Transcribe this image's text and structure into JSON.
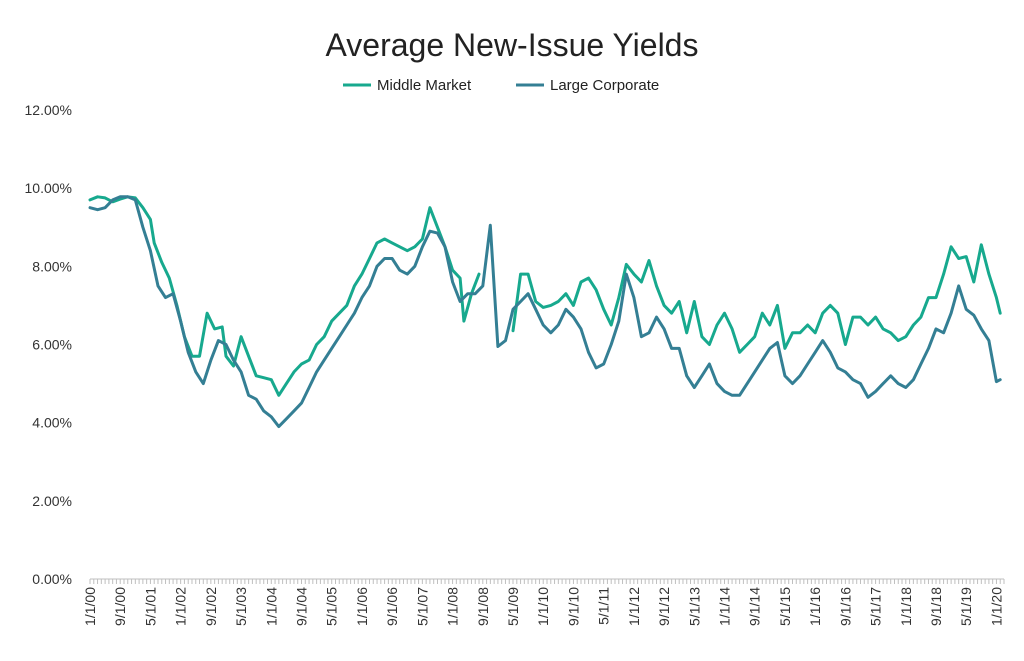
{
  "chart_data": {
    "type": "line",
    "title": "Average New-Issue Yields",
    "xlabel": "",
    "ylabel": "",
    "ylim": [
      0,
      12
    ],
    "yticks": [
      "0.00%",
      "2.00%",
      "4.00%",
      "6.00%",
      "8.00%",
      "10.00%",
      "12.00%"
    ],
    "ytick_values": [
      0,
      2,
      4,
      6,
      8,
      10,
      12
    ],
    "xlim": [
      "2000-01",
      "2020-03"
    ],
    "xticks": [
      "1/1/00",
      "9/1/00",
      "5/1/01",
      "1/1/02",
      "9/1/02",
      "5/1/03",
      "1/1/04",
      "9/1/04",
      "5/1/05",
      "1/1/06",
      "9/1/06",
      "5/1/07",
      "1/1/08",
      "9/1/08",
      "5/1/09",
      "1/1/10",
      "9/1/10",
      "5/1/11",
      "1/1/12",
      "9/1/12",
      "5/1/13",
      "1/1/14",
      "9/1/14",
      "5/1/15",
      "1/1/16",
      "9/1/16",
      "5/1/17",
      "1/1/18",
      "9/1/18",
      "5/1/19",
      "1/1/20"
    ],
    "legend_position": "top",
    "grid": false,
    "series": [
      {
        "name": "Middle Market",
        "color": "#17a98e",
        "points": [
          [
            "2000-01",
            9.7
          ],
          [
            "2000-03",
            9.78
          ],
          [
            "2000-05",
            9.75
          ],
          [
            "2000-07",
            9.65
          ],
          [
            "2000-09",
            9.72
          ],
          [
            "2000-11",
            9.78
          ],
          [
            "2001-01",
            9.75
          ],
          [
            "2001-03",
            9.5
          ],
          [
            "2001-05",
            9.2
          ],
          [
            "2001-06",
            8.6
          ],
          [
            "2001-08",
            8.1
          ],
          [
            "2001-10",
            7.7
          ],
          [
            "2001-12",
            7.0
          ],
          [
            "2002-02",
            6.2
          ],
          [
            "2002-04",
            5.7
          ],
          [
            "2002-06",
            5.7
          ],
          [
            "2002-08",
            6.8
          ],
          [
            "2002-10",
            6.4
          ],
          [
            "2002-12",
            6.45
          ],
          [
            "2003-01",
            5.7
          ],
          [
            "2003-03",
            5.45
          ],
          [
            "2003-05",
            6.2
          ],
          [
            "2003-07",
            5.7
          ],
          [
            "2003-09",
            5.2
          ],
          [
            "2003-11",
            5.15
          ],
          [
            "2004-01",
            5.1
          ],
          [
            "2004-03",
            4.7
          ],
          [
            "2004-05",
            5.0
          ],
          [
            "2004-07",
            5.3
          ],
          [
            "2004-09",
            5.5
          ],
          [
            "2004-11",
            5.6
          ],
          [
            "2005-01",
            6.0
          ],
          [
            "2005-03",
            6.2
          ],
          [
            "2005-05",
            6.6
          ],
          [
            "2005-07",
            6.8
          ],
          [
            "2005-09",
            7.0
          ],
          [
            "2005-11",
            7.5
          ],
          [
            "2006-01",
            7.8
          ],
          [
            "2006-03",
            8.2
          ],
          [
            "2006-05",
            8.6
          ],
          [
            "2006-07",
            8.7
          ],
          [
            "2006-09",
            8.6
          ],
          [
            "2006-11",
            8.5
          ],
          [
            "2007-01",
            8.4
          ],
          [
            "2007-03",
            8.5
          ],
          [
            "2007-05",
            8.7
          ],
          [
            "2007-07",
            9.5
          ],
          [
            "2007-09",
            9.0
          ],
          [
            "2007-11",
            8.5
          ],
          [
            "2008-01",
            7.9
          ],
          [
            "2008-03",
            7.7
          ],
          [
            "2008-04",
            6.6
          ],
          [
            "2008-06",
            7.3
          ],
          [
            "2008-08",
            7.8
          ]
        ]
      },
      {
        "name": "Middle Market",
        "color": "#17a98e",
        "points": [
          [
            "2009-05",
            6.35
          ],
          [
            "2009-07",
            7.8
          ],
          [
            "2009-09",
            7.8
          ],
          [
            "2009-11",
            7.1
          ],
          [
            "2010-01",
            6.95
          ],
          [
            "2010-03",
            7.0
          ],
          [
            "2010-05",
            7.1
          ],
          [
            "2010-07",
            7.3
          ],
          [
            "2010-09",
            7.0
          ],
          [
            "2010-11",
            7.6
          ],
          [
            "2011-01",
            7.7
          ],
          [
            "2011-03",
            7.4
          ],
          [
            "2011-05",
            6.9
          ],
          [
            "2011-07",
            6.5
          ],
          [
            "2011-09",
            7.2
          ],
          [
            "2011-11",
            8.05
          ],
          [
            "2012-01",
            7.8
          ],
          [
            "2012-03",
            7.6
          ],
          [
            "2012-05",
            8.15
          ],
          [
            "2012-07",
            7.5
          ],
          [
            "2012-09",
            7.0
          ],
          [
            "2012-11",
            6.8
          ],
          [
            "2013-01",
            7.1
          ],
          [
            "2013-03",
            6.3
          ],
          [
            "2013-05",
            7.1
          ],
          [
            "2013-07",
            6.2
          ],
          [
            "2013-09",
            6.0
          ],
          [
            "2013-11",
            6.5
          ],
          [
            "2014-01",
            6.8
          ],
          [
            "2014-03",
            6.4
          ],
          [
            "2014-05",
            5.8
          ],
          [
            "2014-07",
            6.0
          ],
          [
            "2014-09",
            6.2
          ],
          [
            "2014-11",
            6.8
          ],
          [
            "2015-01",
            6.5
          ],
          [
            "2015-03",
            7.0
          ],
          [
            "2015-05",
            5.9
          ],
          [
            "2015-07",
            6.3
          ],
          [
            "2015-09",
            6.3
          ],
          [
            "2015-11",
            6.5
          ],
          [
            "2016-01",
            6.3
          ],
          [
            "2016-03",
            6.8
          ],
          [
            "2016-05",
            7.0
          ],
          [
            "2016-07",
            6.8
          ],
          [
            "2016-09",
            6.0
          ],
          [
            "2016-11",
            6.7
          ],
          [
            "2017-01",
            6.7
          ],
          [
            "2017-03",
            6.5
          ],
          [
            "2017-05",
            6.7
          ],
          [
            "2017-07",
            6.4
          ],
          [
            "2017-09",
            6.3
          ],
          [
            "2017-11",
            6.1
          ],
          [
            "2018-01",
            6.2
          ],
          [
            "2018-03",
            6.5
          ],
          [
            "2018-05",
            6.7
          ],
          [
            "2018-07",
            7.2
          ],
          [
            "2018-09",
            7.2
          ],
          [
            "2018-11",
            7.8
          ],
          [
            "2019-01",
            8.5
          ],
          [
            "2019-03",
            8.2
          ],
          [
            "2019-05",
            8.25
          ],
          [
            "2019-07",
            7.6
          ],
          [
            "2019-09",
            8.55
          ],
          [
            "2019-11",
            7.8
          ],
          [
            "2020-01",
            7.2
          ],
          [
            "2020-02",
            6.8
          ]
        ]
      },
      {
        "name": "Large Corporate",
        "color": "#347f94",
        "points": [
          [
            "2000-01",
            9.5
          ],
          [
            "2000-03",
            9.45
          ],
          [
            "2000-05",
            9.5
          ],
          [
            "2000-07",
            9.7
          ],
          [
            "2000-09",
            9.78
          ],
          [
            "2000-11",
            9.78
          ],
          [
            "2001-01",
            9.7
          ],
          [
            "2001-03",
            9.0
          ],
          [
            "2001-05",
            8.4
          ],
          [
            "2001-07",
            7.5
          ],
          [
            "2001-09",
            7.2
          ],
          [
            "2001-11",
            7.3
          ],
          [
            "2002-01",
            6.6
          ],
          [
            "2002-03",
            5.8
          ],
          [
            "2002-05",
            5.3
          ],
          [
            "2002-07",
            5.0
          ],
          [
            "2002-09",
            5.6
          ],
          [
            "2002-11",
            6.1
          ],
          [
            "2003-01",
            6.0
          ],
          [
            "2003-03",
            5.6
          ],
          [
            "2003-05",
            5.3
          ],
          [
            "2003-07",
            4.7
          ],
          [
            "2003-09",
            4.6
          ],
          [
            "2003-11",
            4.3
          ],
          [
            "2004-01",
            4.15
          ],
          [
            "2004-03",
            3.9
          ],
          [
            "2004-05",
            4.1
          ],
          [
            "2004-07",
            4.3
          ],
          [
            "2004-09",
            4.5
          ],
          [
            "2004-11",
            4.9
          ],
          [
            "2005-01",
            5.3
          ],
          [
            "2005-03",
            5.6
          ],
          [
            "2005-05",
            5.9
          ],
          [
            "2005-07",
            6.2
          ],
          [
            "2005-09",
            6.5
          ],
          [
            "2005-11",
            6.8
          ],
          [
            "2006-01",
            7.2
          ],
          [
            "2006-03",
            7.5
          ],
          [
            "2006-05",
            8.0
          ],
          [
            "2006-07",
            8.2
          ],
          [
            "2006-09",
            8.2
          ],
          [
            "2006-11",
            7.9
          ],
          [
            "2007-01",
            7.8
          ],
          [
            "2007-03",
            8.0
          ],
          [
            "2007-05",
            8.5
          ],
          [
            "2007-07",
            8.9
          ],
          [
            "2007-09",
            8.85
          ],
          [
            "2007-11",
            8.5
          ],
          [
            "2008-01",
            7.6
          ],
          [
            "2008-03",
            7.1
          ],
          [
            "2008-05",
            7.3
          ],
          [
            "2008-07",
            7.3
          ],
          [
            "2008-09",
            7.5
          ],
          [
            "2008-11",
            9.05
          ],
          [
            "2009-01",
            5.95
          ],
          [
            "2009-03",
            6.1
          ],
          [
            "2009-05",
            6.9
          ],
          [
            "2009-07",
            7.1
          ],
          [
            "2009-09",
            7.3
          ],
          [
            "2009-11",
            6.9
          ],
          [
            "2010-01",
            6.5
          ],
          [
            "2010-03",
            6.3
          ],
          [
            "2010-05",
            6.5
          ],
          [
            "2010-07",
            6.9
          ],
          [
            "2010-09",
            6.7
          ],
          [
            "2010-11",
            6.4
          ],
          [
            "2011-01",
            5.8
          ],
          [
            "2011-03",
            5.4
          ],
          [
            "2011-05",
            5.5
          ],
          [
            "2011-07",
            6.0
          ],
          [
            "2011-09",
            6.6
          ],
          [
            "2011-11",
            7.8
          ],
          [
            "2012-01",
            7.2
          ],
          [
            "2012-03",
            6.2
          ],
          [
            "2012-05",
            6.3
          ],
          [
            "2012-07",
            6.7
          ],
          [
            "2012-09",
            6.4
          ],
          [
            "2012-11",
            5.9
          ],
          [
            "2013-01",
            5.9
          ],
          [
            "2013-03",
            5.2
          ],
          [
            "2013-05",
            4.9
          ],
          [
            "2013-07",
            5.2
          ],
          [
            "2013-09",
            5.5
          ],
          [
            "2013-11",
            5.0
          ],
          [
            "2014-01",
            4.8
          ],
          [
            "2014-03",
            4.7
          ],
          [
            "2014-05",
            4.7
          ],
          [
            "2014-07",
            5.0
          ],
          [
            "2014-09",
            5.3
          ],
          [
            "2014-11",
            5.6
          ],
          [
            "2015-01",
            5.9
          ],
          [
            "2015-03",
            6.05
          ],
          [
            "2015-05",
            5.2
          ],
          [
            "2015-07",
            5.0
          ],
          [
            "2015-09",
            5.2
          ],
          [
            "2015-11",
            5.5
          ],
          [
            "2016-01",
            5.8
          ],
          [
            "2016-03",
            6.1
          ],
          [
            "2016-05",
            5.8
          ],
          [
            "2016-07",
            5.4
          ],
          [
            "2016-09",
            5.3
          ],
          [
            "2016-11",
            5.1
          ],
          [
            "2017-01",
            5.0
          ],
          [
            "2017-03",
            4.65
          ],
          [
            "2017-05",
            4.8
          ],
          [
            "2017-07",
            5.0
          ],
          [
            "2017-09",
            5.2
          ],
          [
            "2017-11",
            5.0
          ],
          [
            "2018-01",
            4.9
          ],
          [
            "2018-03",
            5.1
          ],
          [
            "2018-05",
            5.5
          ],
          [
            "2018-07",
            5.9
          ],
          [
            "2018-09",
            6.4
          ],
          [
            "2018-11",
            6.3
          ],
          [
            "2019-01",
            6.8
          ],
          [
            "2019-03",
            7.5
          ],
          [
            "2019-05",
            6.9
          ],
          [
            "2019-07",
            6.75
          ],
          [
            "2019-09",
            6.4
          ],
          [
            "2019-11",
            6.1
          ],
          [
            "2020-01",
            5.05
          ],
          [
            "2020-02",
            5.1
          ]
        ]
      }
    ]
  }
}
